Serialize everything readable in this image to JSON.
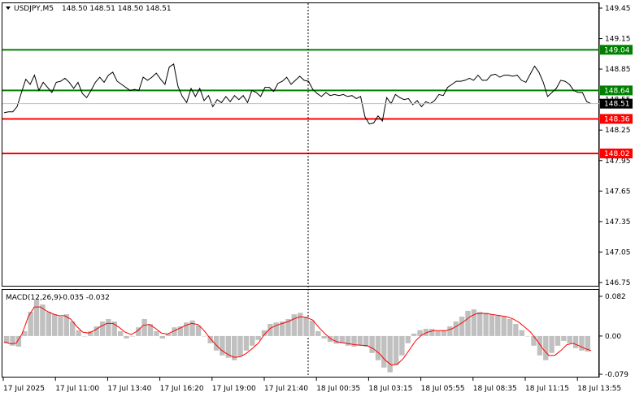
{
  "header": {
    "symbol": "USDJPY,M5",
    "ohlc": "148.50 148.51 148.50 148.51"
  },
  "macd_header": {
    "label": "MACD(12,26,9)",
    "values": "-0.035 -0.032"
  },
  "colors": {
    "background": "#ffffff",
    "price_line": "#000000",
    "support_green": "#008000",
    "resistance_red": "#ff0000",
    "macd_hist": "#c0c0c0",
    "signal_line": "#ff0000",
    "current_price_label_bg": "#000000"
  },
  "chart_data": [
    {
      "type": "line",
      "title": "USDJPY,M5",
      "ylim": [
        146.71,
        149.49
      ],
      "y_ticks": [
        "149.45",
        "149.15",
        "148.85",
        "148.55",
        "148.25",
        "147.95",
        "147.65",
        "147.35",
        "147.05",
        "146.75"
      ],
      "x_ticks": [
        "17 Jul 2025",
        "17 Jul 11:00",
        "17 Jul 13:40",
        "17 Jul 16:20",
        "17 Jul 19:00",
        "17 Jul 21:40",
        "18 Jul 00:35",
        "18 Jul 03:15",
        "18 Jul 05:55",
        "18 Jul 08:35",
        "18 Jul 11:15",
        "18 Jul 13:55"
      ],
      "series": [
        {
          "values": [
            148.42,
            148.43,
            148.43,
            148.48,
            148.62,
            148.75,
            148.7,
            148.79,
            148.64,
            148.72,
            148.67,
            148.62,
            148.72,
            148.73,
            148.76,
            148.72,
            148.66,
            148.72,
            148.61,
            148.57,
            148.64,
            148.72,
            148.77,
            148.72,
            148.79,
            148.82,
            148.73,
            148.7,
            148.67,
            148.64,
            148.65,
            148.64,
            148.77,
            148.74,
            148.77,
            148.81,
            148.75,
            148.7,
            148.87,
            148.9,
            148.68,
            148.58,
            148.52,
            148.66,
            148.58,
            148.66,
            148.54,
            148.59,
            148.48,
            148.55,
            148.52,
            148.58,
            148.53,
            148.59,
            148.55,
            148.59,
            148.52,
            148.64,
            148.62,
            148.58,
            148.67,
            148.67,
            148.63,
            148.71,
            148.73,
            148.77,
            148.7,
            148.74,
            148.78,
            148.74,
            148.73,
            148.65,
            148.61,
            148.58,
            148.62,
            148.59,
            148.6,
            148.59,
            148.6,
            148.58,
            148.59,
            148.56,
            148.58,
            148.38,
            148.31,
            148.32,
            148.39,
            148.34,
            148.57,
            148.51,
            148.6,
            148.57,
            148.55,
            148.56,
            148.5,
            148.54,
            148.48,
            148.53,
            148.51,
            148.54,
            148.6,
            148.59,
            148.67,
            148.7,
            148.73,
            148.73,
            148.74,
            148.76,
            148.74,
            148.79,
            148.74,
            148.74,
            148.79,
            148.8,
            148.77,
            148.79,
            148.79,
            148.78,
            148.79,
            148.74,
            148.72,
            148.8,
            148.88,
            148.82,
            148.72,
            148.58,
            148.62,
            148.66,
            148.74,
            148.73,
            148.7,
            148.64,
            148.62,
            148.62,
            148.53,
            148.51
          ]
        }
      ],
      "horizontal_levels": [
        {
          "value": 149.04,
          "label": "149.04",
          "color": "#008000"
        },
        {
          "value": 148.64,
          "label": "148.64",
          "color": "#008000"
        },
        {
          "value": 148.36,
          "label": "148.36",
          "color": "#ff0000"
        },
        {
          "value": 148.02,
          "label": "148.02",
          "color": "#ff0000"
        }
      ],
      "current_price": {
        "value": 148.51,
        "label": "148.51"
      },
      "grid": false
    },
    {
      "type": "bar",
      "title": "MACD(12,26,9)",
      "ylim": [
        -0.085,
        0.088
      ],
      "y_ticks": [
        "0.082",
        "0.00",
        "-0.079"
      ],
      "histogram": [
        -0.015,
        -0.02,
        -0.022,
        0.01,
        0.05,
        0.075,
        0.065,
        0.05,
        0.045,
        0.04,
        0.045,
        0.03,
        0.012,
        0.0,
        0.01,
        0.02,
        0.03,
        0.035,
        0.03,
        0.01,
        -0.005,
        0.0,
        0.018,
        0.035,
        0.025,
        0.01,
        -0.005,
        0.005,
        0.018,
        0.02,
        0.028,
        0.032,
        0.022,
        0.0,
        -0.015,
        -0.03,
        -0.04,
        -0.045,
        -0.05,
        -0.042,
        -0.03,
        -0.02,
        -0.008,
        0.012,
        0.025,
        0.028,
        0.03,
        0.035,
        0.045,
        0.048,
        0.04,
        0.032,
        0.01,
        -0.005,
        -0.012,
        -0.016,
        -0.015,
        -0.02,
        -0.022,
        -0.02,
        -0.022,
        -0.035,
        -0.05,
        -0.065,
        -0.075,
        -0.06,
        -0.04,
        -0.015,
        0.005,
        0.012,
        0.015,
        0.015,
        0.01,
        0.012,
        0.02,
        0.03,
        0.04,
        0.052,
        0.055,
        0.05,
        0.048,
        0.045,
        0.042,
        0.04,
        0.035,
        0.025,
        0.012,
        0.0,
        -0.02,
        -0.04,
        -0.05,
        -0.035,
        -0.02,
        -0.01,
        -0.015,
        -0.025,
        -0.03,
        -0.032
      ],
      "signal": [
        -0.012,
        -0.016,
        -0.015,
        0.005,
        0.04,
        0.06,
        0.06,
        0.052,
        0.046,
        0.042,
        0.042,
        0.035,
        0.02,
        0.008,
        0.006,
        0.012,
        0.02,
        0.026,
        0.026,
        0.018,
        0.008,
        0.003,
        0.01,
        0.022,
        0.024,
        0.016,
        0.006,
        0.004,
        0.01,
        0.016,
        0.022,
        0.026,
        0.024,
        0.012,
        -0.004,
        -0.018,
        -0.03,
        -0.038,
        -0.044,
        -0.043,
        -0.036,
        -0.026,
        -0.015,
        0.003,
        0.016,
        0.022,
        0.026,
        0.03,
        0.036,
        0.04,
        0.038,
        0.033,
        0.018,
        0.005,
        -0.006,
        -0.012,
        -0.014,
        -0.016,
        -0.018,
        -0.019,
        -0.02,
        -0.026,
        -0.036,
        -0.05,
        -0.06,
        -0.058,
        -0.046,
        -0.028,
        -0.01,
        0.002,
        0.008,
        0.011,
        0.011,
        0.011,
        0.015,
        0.022,
        0.03,
        0.04,
        0.046,
        0.047,
        0.046,
        0.044,
        0.042,
        0.04,
        0.036,
        0.029,
        0.019,
        0.008,
        -0.008,
        -0.026,
        -0.04,
        -0.04,
        -0.03,
        -0.018,
        -0.015,
        -0.02,
        -0.026,
        -0.03
      ]
    }
  ]
}
